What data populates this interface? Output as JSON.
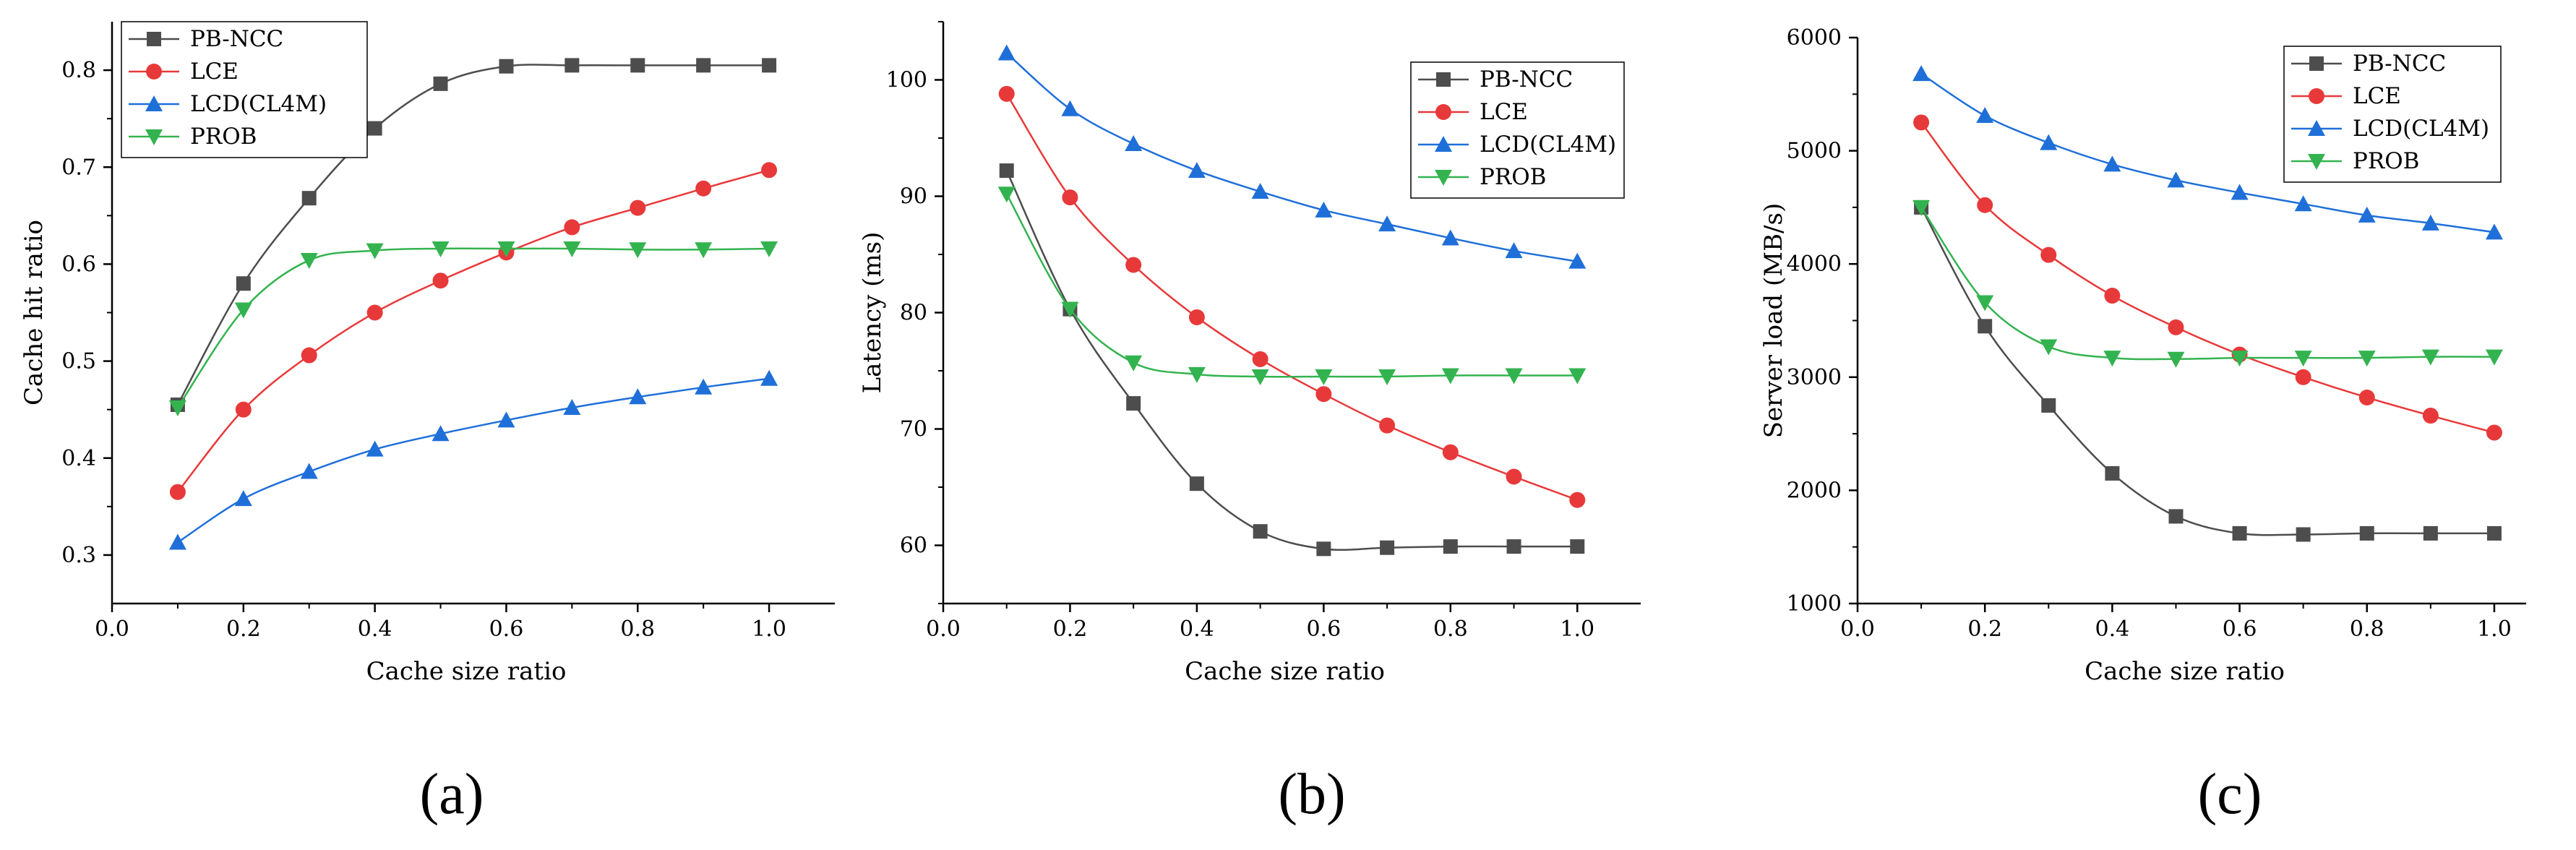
{
  "colors": {
    "PB-NCC": "#4d4d4d",
    "LCE": "#e8393a",
    "LCD(CL4M)": "#1f6fd9",
    "PROB": "#33b34f"
  },
  "markers": {
    "PB-NCC": "square",
    "LCE": "circle",
    "LCD(CL4M)": "triangle-up",
    "PROB": "triangle-down"
  },
  "chart_data": [
    {
      "panel_label": "(a)",
      "type": "line",
      "xlabel": "Cache size ratio",
      "ylabel": "Cache hit ratio",
      "xlim": [
        0.0,
        1.1
      ],
      "ylim": [
        0.25,
        0.85
      ],
      "xticks": [
        0.0,
        0.2,
        0.4,
        0.6,
        0.8,
        1.0
      ],
      "xtick_labels": [
        "0.0",
        "0.2",
        "0.4",
        "0.6",
        "0.8",
        "1.0"
      ],
      "yticks": [
        0.3,
        0.4,
        0.5,
        0.6,
        0.7,
        0.8
      ],
      "ytick_labels": [
        "0.3",
        "0.4",
        "0.5",
        "0.6",
        "0.7",
        "0.8"
      ],
      "legend": [
        "PB-NCC",
        "LCE",
        "LCD(CL4M)",
        "PROB"
      ],
      "legend_position": "top-left",
      "x": [
        0.1,
        0.2,
        0.3,
        0.4,
        0.5,
        0.6,
        0.7,
        0.8,
        0.9,
        1.0
      ],
      "series": [
        {
          "name": "PB-NCC",
          "values": [
            0.455,
            0.58,
            0.668,
            0.74,
            0.786,
            0.804,
            0.805,
            0.805,
            0.805,
            0.805
          ]
        },
        {
          "name": "LCE",
          "values": [
            0.365,
            0.45,
            0.506,
            0.55,
            0.583,
            0.612,
            0.638,
            0.658,
            0.678,
            0.697
          ]
        },
        {
          "name": "LCD(CL4M)",
          "values": [
            0.313,
            0.358,
            0.386,
            0.409,
            0.425,
            0.439,
            0.452,
            0.463,
            0.473,
            0.482
          ]
        },
        {
          "name": "PROB",
          "values": [
            0.452,
            0.553,
            0.604,
            0.614,
            0.616,
            0.616,
            0.616,
            0.615,
            0.615,
            0.616
          ]
        }
      ]
    },
    {
      "panel_label": "(b)",
      "type": "line",
      "xlabel": "Cache size ratio",
      "ylabel": "Latency (ms)",
      "xlim": [
        0.0,
        1.1
      ],
      "ylim": [
        55,
        105
      ],
      "xticks": [
        0.0,
        0.2,
        0.4,
        0.6,
        0.8,
        1.0
      ],
      "xtick_labels": [
        "0.0",
        "0.2",
        "0.4",
        "0.6",
        "0.8",
        "1.0"
      ],
      "yticks": [
        60,
        70,
        80,
        90,
        100
      ],
      "ytick_labels": [
        "60",
        "70",
        "80",
        "90",
        "100"
      ],
      "legend": [
        "PB-NCC",
        "LCE",
        "LCD(CL4M)",
        "PROB"
      ],
      "legend_position": "top-right",
      "x": [
        0.1,
        0.2,
        0.3,
        0.4,
        0.5,
        0.6,
        0.7,
        0.8,
        0.9,
        1.0
      ],
      "series": [
        {
          "name": "PB-NCC",
          "values": [
            92.2,
            80.3,
            72.2,
            65.3,
            61.2,
            59.7,
            59.8,
            59.9,
            59.9,
            59.9
          ]
        },
        {
          "name": "LCE",
          "values": [
            98.8,
            89.9,
            84.1,
            79.6,
            76.0,
            73.0,
            70.3,
            68.0,
            65.9,
            63.9
          ]
        },
        {
          "name": "LCD(CL4M)",
          "values": [
            102.3,
            97.5,
            94.5,
            92.2,
            90.4,
            88.8,
            87.6,
            86.4,
            85.3,
            84.4
          ]
        },
        {
          "name": "PROB",
          "values": [
            90.2,
            80.3,
            75.7,
            74.7,
            74.5,
            74.5,
            74.5,
            74.6,
            74.6,
            74.6
          ]
        }
      ]
    },
    {
      "panel_label": "(c)",
      "type": "line",
      "xlabel": "Cache size ratio",
      "ylabel": "Server load (MB/s)",
      "xlim": [
        0.0,
        1.05
      ],
      "ylim": [
        1000,
        6000
      ],
      "xticks": [
        0.0,
        0.2,
        0.4,
        0.6,
        0.8,
        1.0
      ],
      "xtick_labels": [
        "0.0",
        "0.2",
        "0.4",
        "0.6",
        "0.8",
        "1.0"
      ],
      "yticks": [
        1000,
        2000,
        3000,
        4000,
        5000,
        6000
      ],
      "ytick_labels": [
        "1000",
        "2000",
        "3000",
        "4000",
        "5000",
        "6000"
      ],
      "legend": [
        "PB-NCC",
        "LCE",
        "LCD(CL4M)",
        "PROB"
      ],
      "legend_position": "top-right",
      "x": [
        0.1,
        0.2,
        0.3,
        0.4,
        0.5,
        0.6,
        0.7,
        0.8,
        0.9,
        1.0
      ],
      "series": [
        {
          "name": "PB-NCC",
          "values": [
            4500,
            3450,
            2750,
            2150,
            1770,
            1620,
            1610,
            1620,
            1620,
            1620
          ]
        },
        {
          "name": "LCE",
          "values": [
            5250,
            4520,
            4080,
            3720,
            3440,
            3200,
            3000,
            2820,
            2660,
            2510
          ]
        },
        {
          "name": "LCD(CL4M)",
          "values": [
            5680,
            5310,
            5070,
            4880,
            4740,
            4630,
            4530,
            4430,
            4360,
            4280
          ]
        },
        {
          "name": "PROB",
          "values": [
            4500,
            3660,
            3270,
            3170,
            3160,
            3170,
            3170,
            3170,
            3180,
            3180
          ]
        }
      ]
    }
  ]
}
